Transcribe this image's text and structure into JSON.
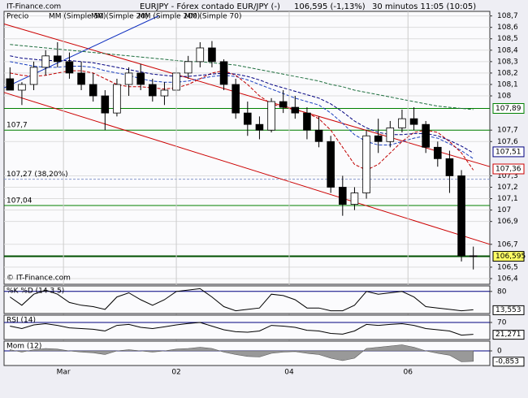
{
  "chart_data": [
    {
      "type": "candlestick",
      "source": "IT-Finance.com",
      "title": "EURJPY - Fórex contado EUR/JPY (-)",
      "quote": "106,595 (-1,13%)",
      "interval": "30 minutos  11:05 (10:05)",
      "footer": "© IT-Finance.com",
      "price_label": "Precio",
      "ylim": [
        106.35,
        108.74
      ],
      "yticks": [
        {
          "value": 108.7,
          "label": "108,7"
        },
        {
          "value": 108.6,
          "label": "108,6"
        },
        {
          "value": 108.5,
          "label": "108,5"
        },
        {
          "value": 108.4,
          "label": "108,4"
        },
        {
          "value": 108.3,
          "label": "108,3"
        },
        {
          "value": 108.2,
          "label": "108,2"
        },
        {
          "value": 108.1,
          "label": "108,1"
        },
        108,
        {
          "value": 107.7,
          "label": "107,7"
        },
        {
          "value": 107.6,
          "label": "107,6"
        },
        {
          "value": 107.3,
          "label": "107,3"
        },
        {
          "value": 107.2,
          "label": "107,2"
        },
        {
          "value": 107.1,
          "label": "107,1"
        },
        107,
        {
          "value": 106.9,
          "label": "106,9"
        },
        {
          "value": 106.7,
          "label": "106,7"
        },
        {
          "value": 106.5,
          "label": "106,5"
        },
        {
          "value": 106.4,
          "label": "106,4"
        }
      ],
      "xticks": [
        {
          "value": 4.5,
          "label": "Mar"
        },
        {
          "value": 14,
          "label": "02"
        },
        {
          "value": 23.5,
          "label": "04"
        },
        {
          "value": 33.5,
          "label": "06"
        }
      ],
      "ohlc": [
        [
          108.15,
          108.25,
          108.05,
          108.05
        ],
        [
          108.05,
          108.12,
          107.92,
          108.1
        ],
        [
          108.1,
          108.3,
          108.05,
          108.25
        ],
        [
          108.25,
          108.4,
          108.18,
          108.35
        ],
        [
          108.35,
          108.47,
          108.25,
          108.3
        ],
        [
          108.3,
          108.38,
          108.15,
          108.2
        ],
        [
          108.2,
          108.3,
          108.05,
          108.1
        ],
        [
          108.1,
          108.2,
          107.95,
          108.0
        ],
        [
          108.0,
          108.05,
          107.7,
          107.85
        ],
        [
          107.85,
          108.15,
          107.82,
          108.1
        ],
        [
          108.1,
          108.25,
          108.0,
          108.2
        ],
        [
          108.2,
          108.28,
          108.05,
          108.1
        ],
        [
          108.1,
          108.15,
          107.95,
          108.0
        ],
        [
          108.0,
          108.12,
          107.92,
          108.05
        ],
        [
          108.05,
          108.25,
          108.0,
          108.2
        ],
        [
          108.2,
          108.35,
          108.15,
          108.3
        ],
        [
          108.3,
          108.47,
          108.25,
          108.42
        ],
        [
          108.42,
          108.48,
          108.25,
          108.3
        ],
        [
          108.3,
          108.32,
          108.05,
          108.1
        ],
        [
          108.1,
          108.15,
          107.8,
          107.85
        ],
        [
          107.85,
          107.95,
          107.65,
          107.75
        ],
        [
          107.75,
          107.82,
          107.62,
          107.7
        ],
        [
          107.7,
          107.98,
          107.68,
          107.95
        ],
        [
          107.95,
          108.05,
          107.85,
          107.9
        ],
        [
          107.9,
          108.0,
          107.8,
          107.85
        ],
        [
          107.85,
          107.9,
          107.62,
          107.7
        ],
        [
          107.7,
          107.82,
          107.55,
          107.6
        ],
        [
          107.6,
          107.65,
          107.15,
          107.2
        ],
        [
          107.2,
          107.3,
          106.95,
          107.05
        ],
        [
          107.05,
          107.2,
          107.0,
          107.15
        ],
        [
          107.15,
          107.7,
          107.1,
          107.65
        ],
        [
          107.65,
          107.8,
          107.5,
          107.6
        ],
        [
          107.6,
          107.78,
          107.55,
          107.72
        ],
        [
          107.72,
          107.88,
          107.68,
          107.8
        ],
        [
          107.8,
          107.9,
          107.7,
          107.75
        ],
        [
          107.75,
          107.78,
          107.5,
          107.55
        ],
        [
          107.55,
          107.6,
          107.38,
          107.45
        ],
        [
          107.45,
          107.52,
          107.15,
          107.3
        ],
        [
          107.3,
          107.35,
          106.55,
          106.6
        ],
        [
          106.6,
          106.68,
          106.48,
          106.595
        ]
      ],
      "up_color": "#ffffff",
      "down_color": "#000000",
      "series": [
        {
          "name": "MM (Simple 50)",
          "color": "#1a3fbf",
          "values": [
            108.3,
            108.28,
            108.26,
            108.25,
            108.25,
            108.26,
            108.26,
            108.25,
            108.22,
            108.2,
            108.18,
            108.15,
            108.13,
            108.12,
            108.12,
            108.13,
            108.15,
            108.17,
            108.18,
            108.17,
            108.14,
            108.1,
            108.06,
            108.02,
            107.98,
            107.95,
            107.92,
            107.85,
            107.76,
            107.66,
            107.6,
            107.57,
            107.57,
            107.6,
            107.63,
            107.65,
            107.63,
            107.58,
            107.52,
            107.45
          ]
        },
        {
          "name": "MM (Simple 20)",
          "color": "#c00000",
          "values": [
            108.2,
            108.18,
            108.17,
            108.18,
            108.2,
            108.22,
            108.22,
            108.2,
            108.15,
            108.1,
            108.08,
            108.08,
            108.07,
            108.06,
            108.07,
            108.1,
            108.15,
            108.2,
            108.22,
            108.18,
            108.1,
            108.0,
            107.93,
            107.9,
            107.88,
            107.85,
            107.8,
            107.7,
            107.55,
            107.4,
            107.35,
            107.4,
            107.5,
            107.6,
            107.68,
            107.7,
            107.68,
            107.6,
            107.5,
            107.35
          ]
        },
        {
          "name": "MM (Simple 200)",
          "color": "#1f6f3f",
          "values": [
            108.45,
            108.44,
            108.43,
            108.42,
            108.41,
            108.4,
            108.39,
            108.38,
            108.37,
            108.36,
            108.35,
            108.34,
            108.33,
            108.32,
            108.31,
            108.3,
            108.3,
            108.29,
            108.28,
            108.27,
            108.25,
            108.23,
            108.21,
            108.19,
            108.17,
            108.15,
            108.13,
            108.1,
            108.08,
            108.05,
            108.03,
            108.01,
            107.99,
            107.97,
            107.95,
            107.93,
            107.91,
            107.9,
            107.89,
            107.88
          ]
        },
        {
          "name": "MM (Simple 70)",
          "color": "#000080",
          "values": [
            108.35,
            108.33,
            108.32,
            108.31,
            108.31,
            108.31,
            108.3,
            108.29,
            108.27,
            108.25,
            108.23,
            108.21,
            108.19,
            108.18,
            108.17,
            108.17,
            108.18,
            108.19,
            108.2,
            108.19,
            108.17,
            108.14,
            108.1,
            108.07,
            108.04,
            108.01,
            107.98,
            107.93,
            107.86,
            107.78,
            107.72,
            107.68,
            107.66,
            107.66,
            107.67,
            107.67,
            107.65,
            107.61,
            107.56,
            107.5
          ]
        }
      ],
      "trendlines": [
        {
          "color": "#cc0000",
          "x": [
            -0.5,
            40.4
          ],
          "values": [
            108.63,
            107.38
          ]
        },
        {
          "color": "#cc0000",
          "x": [
            -0.5,
            40.4
          ],
          "values": [
            108.03,
            106.7
          ]
        },
        {
          "color": "#1030c0",
          "x": [
            -0.5,
            12.5
          ],
          "values": [
            108.07,
            108.7
          ]
        }
      ],
      "levels": [
        {
          "value": 107.89,
          "color": "#008000"
        },
        {
          "value": 107.7,
          "label": "107,7",
          "color": "#008000"
        },
        {
          "value": 107.27,
          "label": "107,27 (38,20%)",
          "color": "#8899cc",
          "dashed": true
        },
        {
          "value": 107.04,
          "label": "107,04",
          "color": "#008000"
        },
        {
          "value": 106.595,
          "color": "#005000",
          "width": 2
        }
      ],
      "price_tags": [
        {
          "value": 107.89,
          "label": "107,89",
          "border": "#008000",
          "fill": "#ffffff"
        },
        {
          "value": 107.51,
          "label": "107,51",
          "border": "#000080",
          "fill": "#ffffff"
        },
        {
          "value": 107.36,
          "label": "107,36",
          "border": "#cc0000",
          "fill": "#ffffff"
        },
        {
          "value": 106.595,
          "label": "106,595",
          "border": "#000000",
          "fill": "#ffff66"
        }
      ]
    },
    {
      "type": "line",
      "title": "%K  %D (14 3 5)",
      "color": "#000000",
      "ylim": [
        0,
        100
      ],
      "yticks": [
        80
      ],
      "values": [
        60,
        30,
        70,
        85,
        70,
        40,
        30,
        25,
        15,
        60,
        75,
        50,
        30,
        50,
        80,
        85,
        90,
        60,
        25,
        10,
        15,
        20,
        70,
        65,
        50,
        20,
        20,
        10,
        10,
        30,
        80,
        70,
        75,
        80,
        60,
        25,
        20,
        15,
        10,
        13.553
      ],
      "last_label": "13,553"
    },
    {
      "type": "line",
      "title": "RSI (14)",
      "color": "#000000",
      "ylim": [
        0,
        100
      ],
      "yticks": [
        70
      ],
      "values": [
        55,
        45,
        60,
        65,
        58,
        48,
        45,
        42,
        35,
        58,
        62,
        50,
        45,
        52,
        60,
        66,
        70,
        55,
        40,
        32,
        30,
        35,
        58,
        55,
        50,
        38,
        35,
        25,
        22,
        35,
        62,
        58,
        62,
        65,
        58,
        45,
        40,
        35,
        18,
        21.271
      ],
      "last_label": "21,271"
    },
    {
      "type": "area",
      "title": "Mom (12)",
      "color": "#999999",
      "ylim": [
        -1.2,
        0.8
      ],
      "yticks": [
        0
      ],
      "values": [
        0.1,
        -0.1,
        0.1,
        0.2,
        0.15,
        0,
        -0.1,
        -0.15,
        -0.3,
        0,
        0.1,
        0,
        -0.1,
        0,
        0.15,
        0.2,
        0.3,
        0.2,
        -0.1,
        -0.3,
        -0.45,
        -0.5,
        -0.2,
        -0.1,
        -0.05,
        -0.2,
        -0.3,
        -0.6,
        -0.8,
        -0.6,
        0.2,
        0.3,
        0.4,
        0.5,
        0.3,
        0,
        -0.2,
        -0.35,
        -0.9,
        -0.853
      ],
      "last_label": "-0,853"
    }
  ]
}
